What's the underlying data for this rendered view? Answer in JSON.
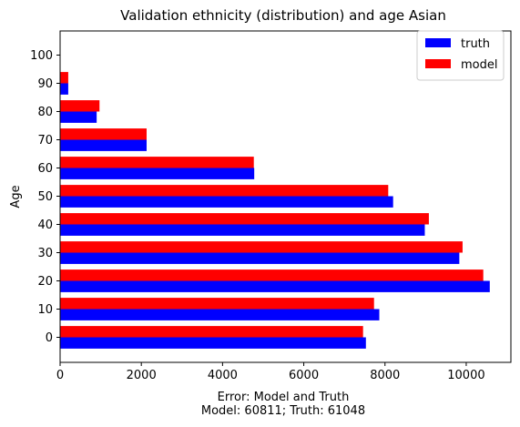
{
  "chart_data": {
    "type": "bar",
    "orientation": "horizontal",
    "title": "Validation ethnicity (distribution) and age Asian",
    "ylabel": "Age",
    "xlabel_lines": [
      "Error: Model and Truth",
      "Model: 60811; Truth: 61048"
    ],
    "categories": [
      "0",
      "10",
      "20",
      "30",
      "40",
      "50",
      "60",
      "70",
      "80",
      "90",
      "100"
    ],
    "xlim": [
      0,
      11100
    ],
    "xticks": [
      0,
      2000,
      4000,
      6000,
      8000,
      10000
    ],
    "legend_position": "top-right",
    "series": [
      {
        "name": "truth",
        "color": "#0000ff",
        "values": [
          7530,
          7860,
          10580,
          9830,
          8980,
          8200,
          4780,
          2130,
          900,
          200,
          0
        ]
      },
      {
        "name": "model",
        "color": "#ff0000",
        "values": [
          7460,
          7730,
          10420,
          9910,
          9080,
          8080,
          4770,
          2130,
          970,
          200,
          0
        ]
      }
    ]
  }
}
